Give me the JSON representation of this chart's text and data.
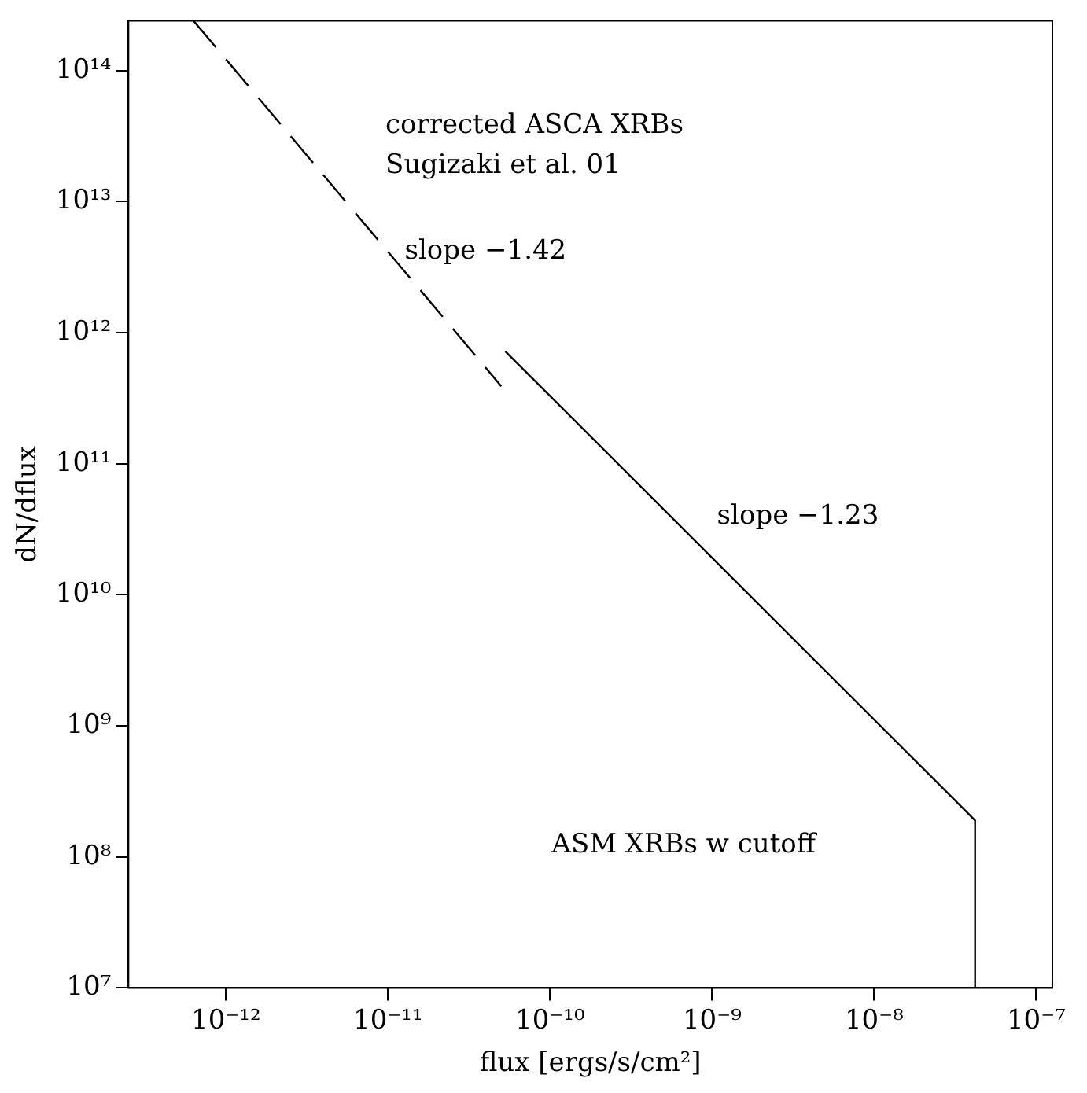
{
  "chart_data": {
    "type": "line",
    "xlabel": "flux [ergs/s/cm²]",
    "ylabel": "dN/dflux",
    "log": "xy",
    "grid": false,
    "legend": false,
    "marker": "none",
    "xlim": [
      2.5e-13,
      1.26e-07
    ],
    "ylim": [
      10000000.0,
      240000000000000.0
    ],
    "xticks": [
      {
        "value": 1e-12,
        "label": "10⁻¹²"
      },
      {
        "value": 1e-11,
        "label": "10⁻¹¹"
      },
      {
        "value": 1e-10,
        "label": "10⁻¹⁰"
      },
      {
        "value": 1e-09,
        "label": "10⁻⁹"
      },
      {
        "value": 1e-08,
        "label": "10⁻⁸"
      },
      {
        "value": 1e-07,
        "label": "10⁻⁷"
      }
    ],
    "yticks": [
      {
        "value": 10000000.0,
        "label": "10⁷"
      },
      {
        "value": 100000000.0,
        "label": "10⁸"
      },
      {
        "value": 1000000000.0,
        "label": "10⁹"
      },
      {
        "value": 10000000000.0,
        "label": "10¹⁰"
      },
      {
        "value": 100000000000.0,
        "label": "10¹¹"
      },
      {
        "value": 1000000000000.0,
        "label": "10¹²"
      },
      {
        "value": 10000000000000.0,
        "label": "10¹³"
      },
      {
        "value": 100000000000000.0,
        "label": "10¹⁴"
      }
    ],
    "series": [
      {
        "color": "#000000",
        "line_style": "dashed",
        "x": [
          6.3e-13,
          5e-11
        ],
        "values": [
          240000000000000.0,
          390000000000.0
        ]
      },
      {
        "color": "#000000",
        "line_style": "solid",
        "x": [
          5.3e-11,
          4.2e-08,
          4.2e-08
        ],
        "values": [
          720000000000.0,
          190000000.0,
          10000000.0
        ]
      }
    ],
    "annotations": [
      "corrected ASCA XRBs",
      "Sugizaki et al. 01",
      "slope −1.42",
      "slope −1.23",
      "ASM XRBs w cutoff"
    ]
  }
}
